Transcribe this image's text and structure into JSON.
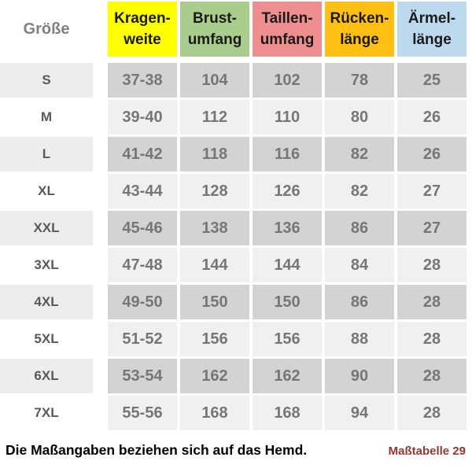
{
  "page": {
    "background": "#FFFFFF"
  },
  "table": {
    "size_column_header": "Größe",
    "columns": [
      {
        "id": "kragenweite",
        "label_lines": [
          "Kragen-",
          "weite"
        ],
        "color": "#FFFF00"
      },
      {
        "id": "brustumfang",
        "label_lines": [
          "Brust-",
          "umfang"
        ],
        "color": "#A9CD8C"
      },
      {
        "id": "taillenumfang",
        "label_lines": [
          "Taillen-",
          "umfang"
        ],
        "color": "#EF8E8E"
      },
      {
        "id": "rueckenlaenge",
        "label_lines": [
          "Rücken-",
          "länge"
        ],
        "color": "#FFC013"
      },
      {
        "id": "aermellaenge",
        "label_lines": [
          "Ärmel-",
          "länge"
        ],
        "color": "#BDD9EE"
      }
    ],
    "rows": [
      {
        "size": "S",
        "values": [
          "37-38",
          "104",
          "102",
          "78",
          "25"
        ]
      },
      {
        "size": "M",
        "values": [
          "39-40",
          "112",
          "110",
          "80",
          "26"
        ]
      },
      {
        "size": "L",
        "values": [
          "41-42",
          "118",
          "116",
          "82",
          "26"
        ]
      },
      {
        "size": "XL",
        "values": [
          "43-44",
          "128",
          "126",
          "82",
          "27"
        ]
      },
      {
        "size": "XXL",
        "values": [
          "45-46",
          "138",
          "136",
          "86",
          "27"
        ]
      },
      {
        "size": "3XL",
        "values": [
          "47-48",
          "144",
          "144",
          "84",
          "28"
        ]
      },
      {
        "size": "4XL",
        "values": [
          "49-50",
          "150",
          "150",
          "86",
          "28"
        ]
      },
      {
        "size": "5XL",
        "values": [
          "51-52",
          "156",
          "156",
          "88",
          "28"
        ]
      },
      {
        "size": "6XL",
        "values": [
          "53-54",
          "162",
          "162",
          "90",
          "28"
        ]
      },
      {
        "size": "7XL",
        "values": [
          "55-56",
          "168",
          "168",
          "94",
          "28"
        ]
      }
    ],
    "row_colors": {
      "dark_size_bg": "#EDEDED",
      "dark_value_bg": "#D3D3D3",
      "light_size_bg": "#FFFFFF",
      "light_value_bg": "#F0F0F0"
    }
  },
  "footer": {
    "note": "Die Maßangaben beziehen sich auf das Hemd.",
    "reference": "Maßtabelle 29",
    "reference_color": "#943634"
  }
}
